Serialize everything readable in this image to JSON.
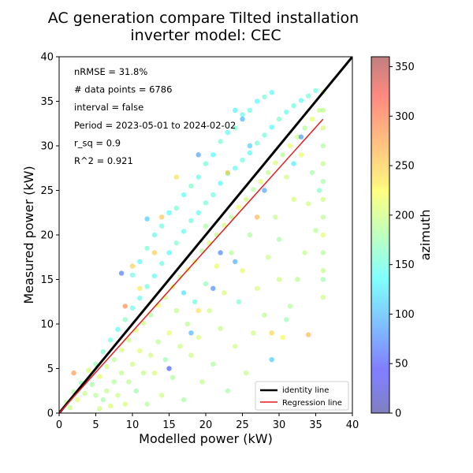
{
  "chart_data": {
    "type": "scatter",
    "title": "AC generation compare Tilted installation",
    "subtitle": "inverter model: CEC",
    "xlabel": "Modelled power (kW)",
    "ylabel": "Measured power (kW)",
    "xlim": [
      0,
      40
    ],
    "ylim": [
      0,
      40
    ],
    "xticks": [
      "0",
      "5",
      "10",
      "15",
      "20",
      "25",
      "30",
      "35",
      "40"
    ],
    "yticks": [
      "0",
      "5",
      "10",
      "15",
      "20",
      "25",
      "30",
      "35",
      "40"
    ],
    "grid": false,
    "annotations": [
      "nRMSE = 31.8%",
      "# data points = 6786",
      "interval = false",
      "Period = 2023-05-01 to 2024-02-02",
      "r_sq = 0.9",
      "R^2 = 0.921"
    ],
    "legend": {
      "placement": "bottom-right",
      "items": [
        {
          "label": "identity line",
          "color": "#000000"
        },
        {
          "label": "Regression line",
          "color": "#e41a1c"
        }
      ]
    },
    "identity_line": {
      "x": [
        0,
        40
      ],
      "y": [
        0,
        40
      ]
    },
    "regression_line": {
      "x": [
        0,
        36
      ],
      "y": [
        0,
        33
      ]
    },
    "colorbar": {
      "label": "azimuth",
      "min": 0,
      "max": 360,
      "ticks": [
        "0",
        "50",
        "100",
        "150",
        "200",
        "250",
        "300",
        "350"
      ],
      "colormap": "jet",
      "alpha": 0.5
    },
    "points": [
      [
        1.0,
        1.2,
        190
      ],
      [
        1.5,
        0.6,
        200
      ],
      [
        2.0,
        2.4,
        185
      ],
      [
        2.5,
        1.5,
        210
      ],
      [
        3.0,
        3.4,
        175
      ],
      [
        3.5,
        2.2,
        195
      ],
      [
        4.0,
        4.8,
        205
      ],
      [
        4.5,
        3.2,
        180
      ],
      [
        5.0,
        5.5,
        170
      ],
      [
        5.5,
        4.1,
        215
      ],
      [
        6.0,
        6.9,
        160
      ],
      [
        6.5,
        5.2,
        200
      ],
      [
        7.0,
        8.2,
        150
      ],
      [
        7.5,
        6.0,
        190
      ],
      [
        8.0,
        9.4,
        140
      ],
      [
        8.5,
        7.1,
        205
      ],
      [
        9.0,
        10.5,
        165
      ],
      [
        9.5,
        8.2,
        195
      ],
      [
        10.0,
        11.8,
        150
      ],
      [
        10.5,
        9.3,
        210
      ],
      [
        11.0,
        12.9,
        145
      ],
      [
        11.5,
        10.1,
        200
      ],
      [
        12.0,
        14.2,
        155
      ],
      [
        12.5,
        11.0,
        185
      ],
      [
        13.0,
        15.4,
        140
      ],
      [
        13.5,
        12.1,
        220
      ],
      [
        14.0,
        16.8,
        150
      ],
      [
        14.5,
        13.0,
        195
      ],
      [
        15.0,
        18.0,
        135
      ],
      [
        15.5,
        14.2,
        205
      ],
      [
        16.0,
        19.1,
        160
      ],
      [
        16.5,
        15.3,
        190
      ],
      [
        17.0,
        20.4,
        145
      ],
      [
        17.5,
        16.1,
        215
      ],
      [
        18.0,
        21.6,
        150
      ],
      [
        18.5,
        17.0,
        200
      ],
      [
        19.0,
        22.5,
        140
      ],
      [
        19.5,
        18.2,
        185
      ],
      [
        20.0,
        23.6,
        155
      ],
      [
        20.5,
        19.1,
        210
      ],
      [
        21.0,
        24.5,
        150
      ],
      [
        21.5,
        20.0,
        195
      ],
      [
        22.0,
        25.8,
        135
      ],
      [
        22.5,
        21.1,
        205
      ],
      [
        23.0,
        26.9,
        160
      ],
      [
        23.5,
        22.0,
        190
      ],
      [
        24.0,
        27.5,
        145
      ],
      [
        24.5,
        23.1,
        215
      ],
      [
        25.0,
        28.4,
        150
      ],
      [
        25.5,
        24.0,
        200
      ],
      [
        26.0,
        29.2,
        140
      ],
      [
        26.5,
        25.1,
        185
      ],
      [
        27.0,
        30.3,
        155
      ],
      [
        27.5,
        26.0,
        210
      ],
      [
        28.0,
        31.2,
        150
      ],
      [
        28.5,
        27.0,
        195
      ],
      [
        29.0,
        32.1,
        135
      ],
      [
        29.5,
        28.1,
        205
      ],
      [
        30.0,
        33.0,
        160
      ],
      [
        30.5,
        29.0,
        190
      ],
      [
        31.0,
        33.8,
        145
      ],
      [
        31.5,
        30.0,
        215
      ],
      [
        32.0,
        34.5,
        150
      ],
      [
        32.5,
        31.0,
        200
      ],
      [
        33.0,
        35.1,
        140
      ],
      [
        33.5,
        32.0,
        185
      ],
      [
        34.0,
        35.6,
        155
      ],
      [
        34.5,
        33.0,
        210
      ],
      [
        35.0,
        36.2,
        150
      ],
      [
        35.5,
        34.0,
        195
      ],
      [
        36.0,
        36.0,
        200
      ],
      [
        36.0,
        34.0,
        190
      ],
      [
        36.0,
        32.0,
        205
      ],
      [
        36.0,
        30.0,
        185
      ],
      [
        36.0,
        28.0,
        195
      ],
      [
        36.0,
        26.0,
        180
      ],
      [
        36.0,
        24.0,
        200
      ],
      [
        36.0,
        22.0,
        190
      ],
      [
        36.0,
        20.0,
        210
      ],
      [
        36.0,
        18.0,
        185
      ],
      [
        36.0,
        16.0,
        195
      ],
      [
        36.0,
        15.0,
        175
      ],
      [
        36.0,
        13.0,
        200
      ],
      [
        35.5,
        25.0,
        160
      ],
      [
        35.0,
        20.5,
        190
      ],
      [
        34.5,
        27.0,
        180
      ],
      [
        34.0,
        23.5,
        200
      ],
      [
        33.5,
        18.0,
        195
      ],
      [
        33.0,
        29.0,
        215
      ],
      [
        32.5,
        15.0,
        190
      ],
      [
        32.0,
        24.0,
        205
      ],
      [
        31.5,
        12.0,
        185
      ],
      [
        31.0,
        26.5,
        200
      ],
      [
        30.5,
        8.5,
        220
      ],
      [
        30.0,
        19.5,
        180
      ],
      [
        29.5,
        22.0,
        195
      ],
      [
        29.0,
        6.0,
        110
      ],
      [
        28.5,
        17.5,
        200
      ],
      [
        28.0,
        11.0,
        190
      ],
      [
        27.5,
        3.0,
        175
      ],
      [
        27.0,
        14.0,
        205
      ],
      [
        26.5,
        9.0,
        200
      ],
      [
        26.0,
        20.0,
        185
      ],
      [
        25.5,
        4.5,
        195
      ],
      [
        25.0,
        16.0,
        210
      ],
      [
        24.5,
        12.5,
        160
      ],
      [
        24.0,
        7.5,
        200
      ],
      [
        23.5,
        18.0,
        190
      ],
      [
        23.0,
        2.5,
        180
      ],
      [
        22.5,
        13.5,
        205
      ],
      [
        22.0,
        9.5,
        195
      ],
      [
        21.5,
        16.5,
        215
      ],
      [
        21.0,
        5.5,
        185
      ],
      [
        20.5,
        11.5,
        200
      ],
      [
        20.0,
        14.5,
        170
      ],
      [
        19.5,
        3.5,
        195
      ],
      [
        19.0,
        8.5,
        205
      ],
      [
        18.5,
        12.5,
        150
      ],
      [
        18.0,
        6.5,
        200
      ],
      [
        17.5,
        10.0,
        190
      ],
      [
        17.0,
        1.5,
        180
      ],
      [
        16.5,
        7.5,
        200
      ],
      [
        16.0,
        11.5,
        195
      ],
      [
        15.5,
        4.0,
        185
      ],
      [
        15.0,
        9.0,
        210
      ],
      [
        14.5,
        6.0,
        175
      ],
      [
        14.0,
        2.0,
        200
      ],
      [
        13.5,
        8.0,
        190
      ],
      [
        13.0,
        4.5,
        205
      ],
      [
        12.5,
        6.5,
        200
      ],
      [
        12.0,
        1.0,
        185
      ],
      [
        11.5,
        4.5,
        195
      ],
      [
        11.0,
        7.0,
        210
      ],
      [
        10.5,
        2.5,
        175
      ],
      [
        10.0,
        5.5,
        200
      ],
      [
        9.5,
        3.5,
        190
      ],
      [
        9.0,
        1.0,
        205
      ],
      [
        8.5,
        4.5,
        195
      ],
      [
        8.0,
        2.0,
        200
      ],
      [
        7.5,
        3.5,
        185
      ],
      [
        7.0,
        0.8,
        210
      ],
      [
        6.5,
        2.5,
        195
      ],
      [
        6.0,
        1.5,
        180
      ],
      [
        5.5,
        0.5,
        200
      ],
      [
        5.0,
        2.0,
        190
      ],
      [
        10.0,
        15.5,
        150
      ],
      [
        11.0,
        17.0,
        140
      ],
      [
        12.0,
        18.5,
        160
      ],
      [
        13.0,
        20.0,
        145
      ],
      [
        14.0,
        21.0,
        150
      ],
      [
        15.0,
        22.5,
        135
      ],
      [
        16.0,
        23.0,
        155
      ],
      [
        17.0,
        24.5,
        140
      ],
      [
        18.0,
        25.5,
        160
      ],
      [
        19.0,
        26.5,
        145
      ],
      [
        20.0,
        28.0,
        150
      ],
      [
        21.0,
        29.0,
        135
      ],
      [
        22.0,
        30.5,
        155
      ],
      [
        23.0,
        31.5,
        140
      ],
      [
        24.0,
        32.0,
        160
      ],
      [
        25.0,
        33.5,
        145
      ],
      [
        26.0,
        34.0,
        150
      ],
      [
        27.0,
        35.0,
        135
      ],
      [
        28.0,
        35.5,
        155
      ],
      [
        29.0,
        36.0,
        140
      ],
      [
        12.0,
        21.8,
        110
      ],
      [
        19.0,
        29.0,
        90
      ],
      [
        24.0,
        34.0,
        130
      ],
      [
        25.0,
        33.0,
        100
      ],
      [
        20.0,
        21.0,
        180
      ],
      [
        8.5,
        15.7,
        70
      ],
      [
        15.0,
        5.0,
        55
      ],
      [
        30.0,
        15.0,
        200
      ],
      [
        31.0,
        10.5,
        175
      ],
      [
        34.0,
        8.8,
        260
      ],
      [
        9.0,
        12.0,
        280
      ],
      [
        10.0,
        16.5,
        250
      ],
      [
        11.0,
        14.0,
        235
      ],
      [
        13.0,
        18.0,
        250
      ],
      [
        16.0,
        26.5,
        240
      ],
      [
        14.0,
        22.0,
        255
      ],
      [
        23.0,
        27.0,
        250
      ],
      [
        27.0,
        22.0,
        260
      ],
      [
        29.0,
        9.0,
        245
      ],
      [
        19.0,
        11.5,
        240
      ],
      [
        2.0,
        4.5,
        275
      ],
      [
        21.0,
        14.0,
        80
      ],
      [
        22.0,
        18.0,
        75
      ],
      [
        28.0,
        25.0,
        90
      ],
      [
        33.0,
        31.0,
        85
      ],
      [
        18.0,
        9.0,
        100
      ],
      [
        24.0,
        17.0,
        95
      ],
      [
        26.0,
        30.0,
        110
      ],
      [
        32.0,
        28.0,
        125
      ],
      [
        17.0,
        13.5,
        120
      ]
    ]
  }
}
